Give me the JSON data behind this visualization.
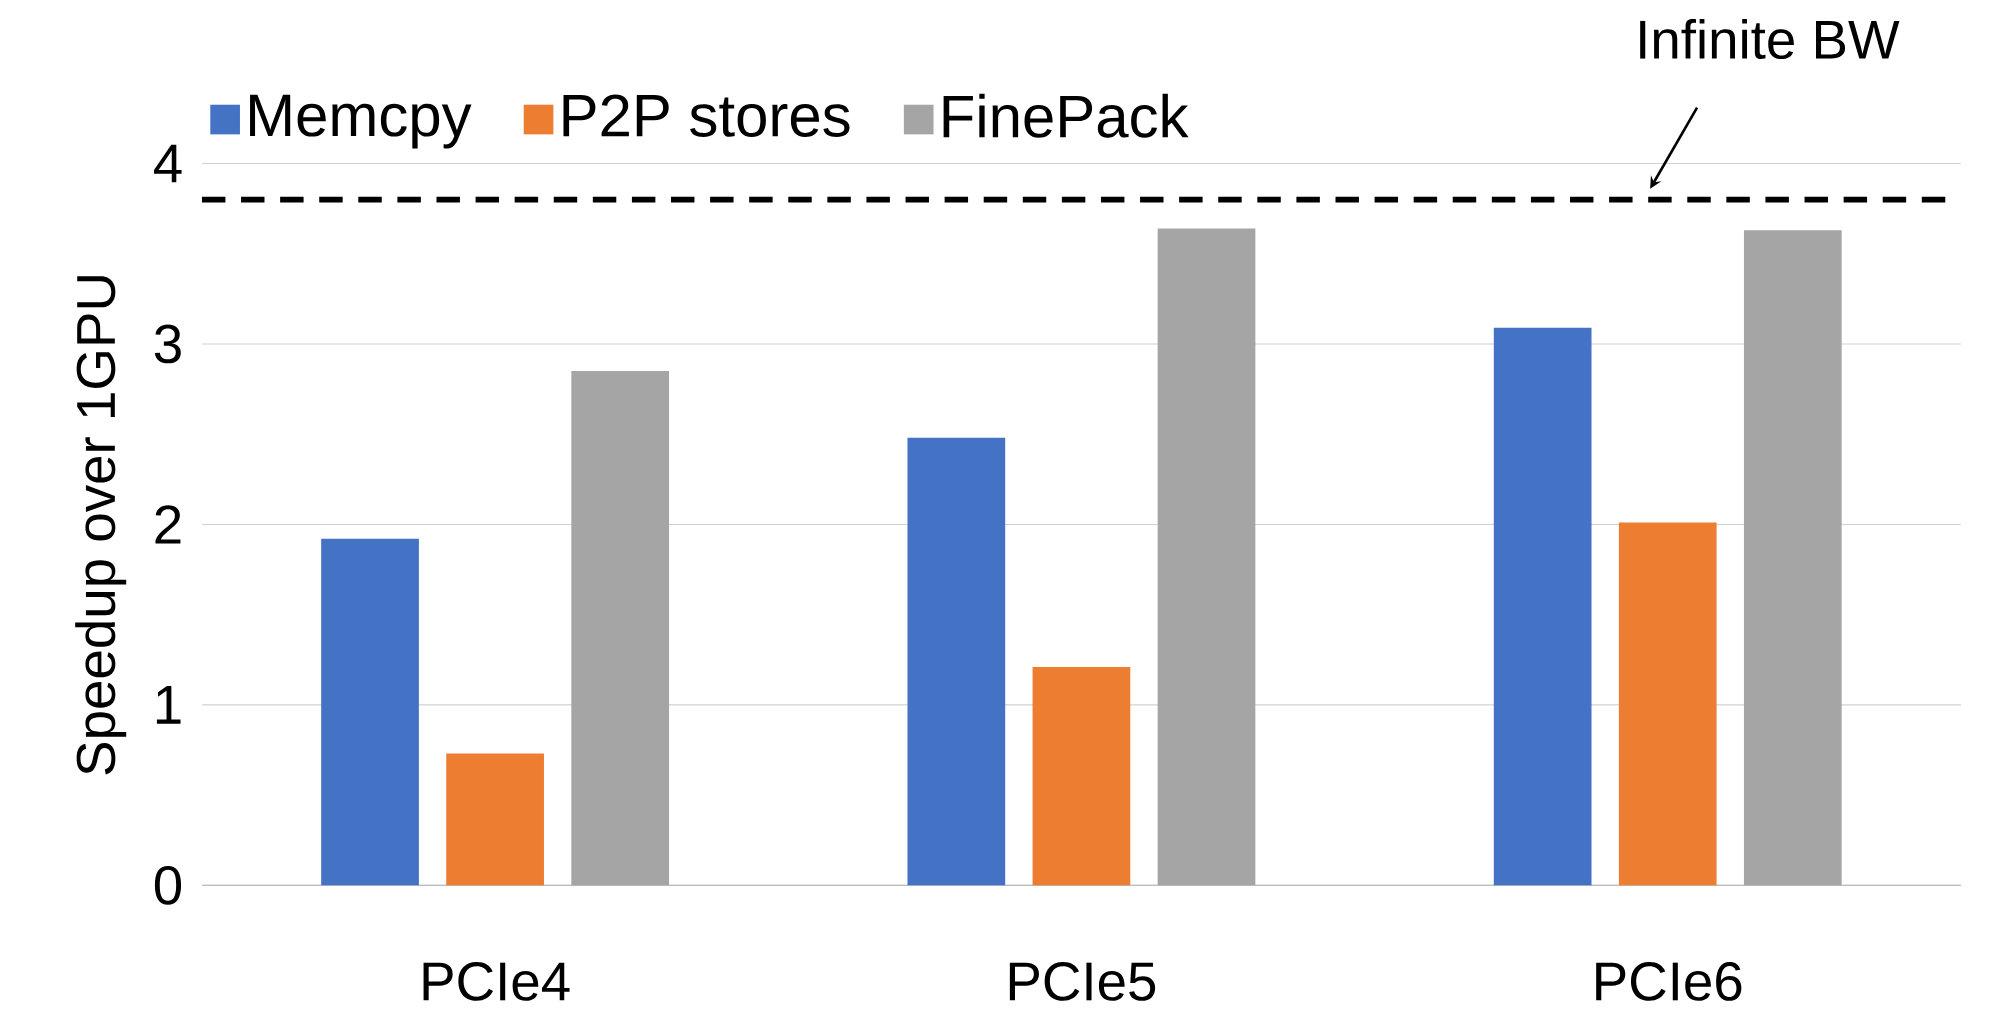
{
  "chart_data": {
    "type": "bar",
    "ylabel": "Speedup over 1GPU",
    "categories": [
      "PCIe4",
      "PCIe5",
      "PCIe6"
    ],
    "series": [
      {
        "name": "Memcpy",
        "color": "#4472c4",
        "values": [
          1.92,
          2.48,
          3.09
        ]
      },
      {
        "name": "P2P stores",
        "color": "#ed7d31",
        "values": [
          0.73,
          1.21,
          2.01
        ]
      },
      {
        "name": "FinePack",
        "color": "#a5a5a5",
        "values": [
          2.85,
          3.64,
          3.63
        ]
      }
    ],
    "ylim": [
      0,
      4
    ],
    "yticks": [
      0,
      1,
      2,
      3,
      4
    ],
    "grid": "y",
    "legend": "top left",
    "ref_lines": [
      {
        "axis": "y",
        "value": 3.8,
        "label": "Infinite BW",
        "color": "#000000",
        "line_style": "dashed"
      }
    ]
  }
}
